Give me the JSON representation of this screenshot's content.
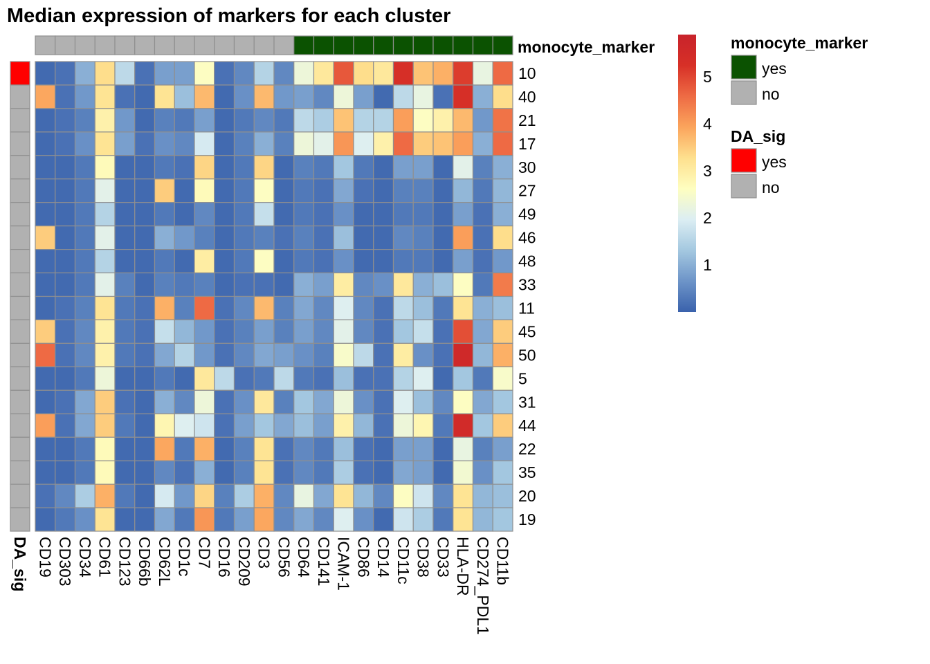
{
  "chart_data": {
    "type": "heatmap",
    "title": "Median expression of markers for each cluster",
    "columns": [
      "CD19",
      "CD303",
      "CD34",
      "CD61",
      "CD123",
      "CD66b",
      "CD62L",
      "CD1c",
      "CD7",
      "CD16",
      "CD209",
      "CD3",
      "CD56",
      "CD64",
      "CD141",
      "ICAM-1",
      "CD86",
      "CD14",
      "CD11c",
      "CD38",
      "CD33",
      "HLA-DR",
      "CD274_PDL1",
      "CD11b"
    ],
    "rows": [
      "10",
      "40",
      "21",
      "17",
      "30",
      "27",
      "49",
      "46",
      "48",
      "33",
      "11",
      "45",
      "50",
      "5",
      "31",
      "44",
      "22",
      "35",
      "20",
      "19"
    ],
    "values": [
      [
        0.1,
        0.2,
        1.0,
        3.3,
        1.6,
        0.2,
        0.8,
        0.8,
        2.6,
        0.2,
        0.5,
        1.5,
        0.5,
        2.3,
        3.1,
        4.8,
        3.3,
        3.1,
        5.3,
        3.6,
        3.8,
        5.1,
        2.2,
        4.6
      ],
      [
        3.9,
        0.2,
        0.7,
        3.2,
        0.2,
        0.1,
        3.2,
        1.2,
        3.7,
        0.1,
        0.6,
        3.7,
        0.7,
        0.8,
        0.5,
        2.3,
        0.8,
        0.1,
        1.6,
        2.2,
        0.2,
        5.3,
        1.0,
        3.3
      ],
      [
        0.1,
        0.2,
        0.4,
        2.9,
        0.7,
        0.1,
        0.4,
        0.3,
        0.8,
        0.1,
        0.3,
        0.5,
        0.3,
        1.6,
        1.4,
        3.6,
        1.5,
        1.5,
        4.0,
        2.6,
        2.9,
        3.7,
        0.7,
        4.5
      ],
      [
        0.1,
        0.2,
        0.6,
        3.2,
        0.8,
        0.2,
        0.6,
        0.5,
        1.9,
        0.1,
        0.4,
        1.0,
        0.4,
        2.3,
        2.1,
        4.1,
        2.0,
        2.9,
        4.6,
        3.5,
        3.6,
        4.0,
        1.0,
        4.6
      ],
      [
        0.1,
        0.1,
        0.3,
        2.7,
        0.1,
        0.1,
        0.3,
        0.2,
        3.4,
        0.1,
        0.3,
        3.4,
        0.1,
        0.4,
        0.3,
        1.3,
        0.3,
        0.1,
        0.8,
        0.8,
        0.1,
        2.1,
        0.4,
        1.0
      ],
      [
        0.1,
        0.1,
        0.3,
        2.1,
        0.1,
        0.1,
        3.5,
        0.1,
        2.7,
        0.1,
        0.3,
        2.6,
        0.1,
        0.3,
        0.2,
        0.9,
        0.2,
        0.1,
        0.4,
        0.4,
        0.1,
        1.1,
        0.3,
        1.1
      ],
      [
        0.1,
        0.1,
        0.3,
        1.5,
        0.1,
        0.1,
        0.3,
        0.1,
        0.5,
        0.1,
        0.3,
        1.7,
        0.1,
        0.3,
        0.2,
        0.6,
        0.1,
        0.1,
        0.3,
        0.3,
        0.1,
        0.8,
        0.2,
        1.0
      ],
      [
        3.5,
        0.1,
        0.3,
        2.1,
        0.1,
        0.1,
        1.0,
        0.7,
        0.4,
        0.1,
        0.3,
        0.4,
        0.2,
        0.4,
        0.2,
        1.2,
        0.1,
        0.1,
        0.5,
        0.4,
        0.1,
        4.0,
        0.2,
        3.3
      ],
      [
        0.1,
        0.1,
        0.3,
        1.5,
        0.1,
        0.1,
        0.3,
        0.1,
        3.0,
        0.1,
        0.3,
        2.6,
        0.1,
        0.3,
        0.2,
        0.6,
        0.1,
        0.1,
        0.3,
        0.3,
        0.1,
        0.8,
        0.2,
        0.7
      ],
      [
        0.1,
        0.1,
        0.3,
        2.1,
        0.4,
        0.1,
        0.4,
        0.3,
        0.4,
        0.1,
        0.2,
        0.2,
        0.1,
        1.0,
        0.8,
        3.0,
        0.5,
        0.6,
        3.1,
        1.0,
        1.2,
        2.6,
        0.3,
        4.4
      ],
      [
        0.1,
        0.2,
        0.4,
        3.2,
        0.3,
        0.2,
        3.8,
        0.4,
        4.6,
        0.2,
        0.5,
        3.7,
        0.4,
        0.9,
        0.5,
        2.0,
        0.5,
        0.2,
        1.6,
        1.2,
        0.3,
        3.2,
        1.0,
        1.2
      ],
      [
        3.5,
        0.2,
        0.5,
        2.9,
        0.3,
        0.2,
        1.7,
        1.1,
        0.7,
        0.2,
        0.4,
        0.8,
        0.4,
        0.8,
        0.5,
        2.1,
        0.5,
        0.2,
        1.3,
        1.7,
        0.2,
        4.9,
        0.9,
        3.5
      ],
      [
        4.6,
        0.2,
        0.5,
        2.9,
        0.3,
        0.2,
        0.9,
        1.5,
        0.7,
        0.2,
        0.5,
        0.9,
        0.8,
        0.6,
        0.4,
        2.5,
        1.6,
        0.2,
        3.0,
        0.6,
        0.2,
        5.6,
        1.1,
        3.8
      ],
      [
        0.1,
        0.1,
        0.3,
        2.3,
        0.1,
        0.1,
        0.3,
        0.1,
        3.1,
        1.6,
        0.2,
        0.3,
        1.6,
        0.3,
        0.2,
        1.2,
        0.2,
        0.2,
        1.5,
        2.0,
        0.1,
        1.3,
        0.3,
        2.5
      ],
      [
        0.1,
        0.2,
        0.9,
        3.5,
        0.2,
        0.1,
        1.0,
        0.5,
        2.3,
        0.2,
        0.6,
        3.1,
        0.4,
        1.3,
        0.9,
        2.3,
        0.6,
        0.2,
        2.0,
        1.2,
        0.5,
        2.6,
        0.9,
        1.3
      ],
      [
        4.0,
        0.2,
        0.9,
        3.5,
        0.3,
        0.1,
        2.8,
        2.0,
        1.8,
        0.2,
        0.8,
        1.3,
        0.9,
        1.2,
        0.8,
        2.9,
        1.1,
        0.2,
        2.3,
        2.8,
        0.3,
        5.5,
        1.3,
        3.5
      ],
      [
        0.1,
        0.1,
        0.3,
        2.7,
        0.1,
        0.1,
        3.9,
        0.3,
        3.8,
        0.1,
        0.4,
        3.2,
        0.2,
        0.5,
        0.3,
        1.2,
        0.2,
        0.1,
        0.8,
        0.8,
        0.1,
        2.2,
        0.4,
        0.8
      ],
      [
        0.1,
        0.1,
        0.3,
        2.7,
        0.1,
        0.1,
        0.5,
        0.2,
        1.0,
        0.1,
        0.4,
        3.2,
        0.2,
        0.5,
        0.3,
        1.4,
        0.2,
        0.1,
        0.9,
        0.8,
        0.1,
        2.4,
        0.6,
        1.3
      ],
      [
        0.2,
        0.5,
        1.4,
        3.8,
        0.3,
        0.1,
        1.9,
        0.7,
        3.4,
        0.4,
        1.4,
        3.8,
        0.5,
        2.2,
        0.9,
        3.2,
        1.1,
        0.5,
        2.6,
        1.8,
        0.5,
        3.2,
        1.1,
        1.2
      ],
      [
        0.1,
        0.3,
        0.6,
        3.2,
        0.1,
        0.1,
        0.9,
        0.3,
        4.1,
        0.3,
        0.8,
        3.9,
        0.5,
        0.9,
        0.5,
        2.0,
        0.6,
        0.1,
        1.8,
        1.4,
        0.3,
        3.2,
        1.1,
        1.3
      ]
    ],
    "scale": {
      "min": 0,
      "max": 5.9,
      "ticks": [
        1,
        2,
        3,
        4,
        5
      ],
      "colors": [
        "#3A62AC",
        "#6D94C8",
        "#A4C8E0",
        "#DCEEF3",
        "#FEFEC0",
        "#FEE08E",
        "#FBA45C",
        "#EE6B44",
        "#D73027",
        "#C8232B"
      ]
    },
    "annotations": {
      "column": {
        "name": "monocyte_marker",
        "values": [
          "no",
          "no",
          "no",
          "no",
          "no",
          "no",
          "no",
          "no",
          "no",
          "no",
          "no",
          "no",
          "no",
          "yes",
          "yes",
          "yes",
          "yes",
          "yes",
          "yes",
          "yes",
          "yes",
          "yes",
          "yes",
          "yes"
        ]
      },
      "row": {
        "name": "DA_sig",
        "values": [
          "yes",
          "no",
          "no",
          "no",
          "no",
          "no",
          "no",
          "no",
          "no",
          "no",
          "no",
          "no",
          "no",
          "no",
          "no",
          "no",
          "no",
          "no",
          "no",
          "no"
        ]
      }
    },
    "legends": [
      {
        "title": "monocyte_marker",
        "items": [
          {
            "label": "yes",
            "color": "#0B5201"
          },
          {
            "label": "no",
            "color": "#B1B1B1"
          }
        ]
      },
      {
        "title": "DA_sig",
        "items": [
          {
            "label": "yes",
            "color": "#FF0000"
          },
          {
            "label": "no",
            "color": "#B1B1B1"
          }
        ]
      }
    ]
  }
}
